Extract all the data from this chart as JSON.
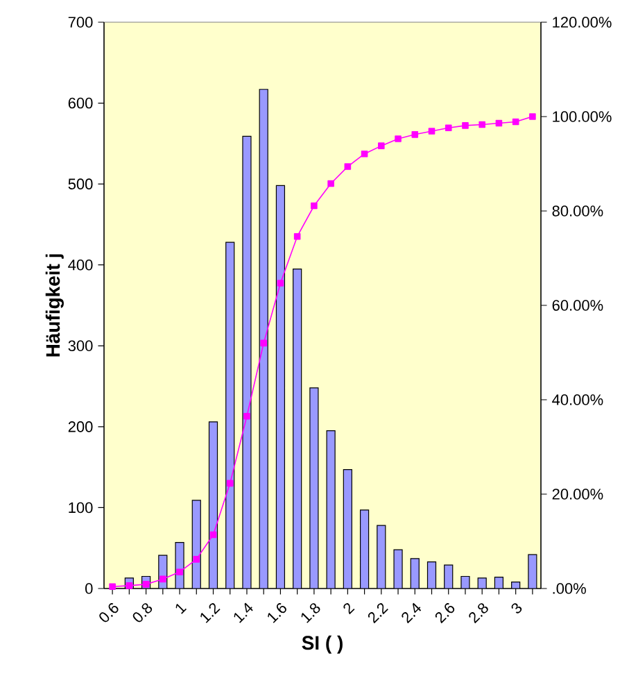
{
  "chart_data": {
    "type": "bar",
    "xlabel": "SI ( )",
    "ylabel": "Häufigkeit j",
    "categories": [
      "0.6",
      null,
      "0.8",
      null,
      "1",
      null,
      "1.2",
      null,
      "1.4",
      null,
      "1.6",
      null,
      "1.8",
      null,
      "2",
      null,
      "2.2",
      null,
      "2.4",
      null,
      "2.6",
      null,
      "2.8",
      null,
      "3",
      null
    ],
    "series": [
      {
        "color": "#9999ff",
        "values": [
          null,
          13,
          15,
          41,
          57,
          109,
          206,
          428,
          559,
          617,
          498,
          395,
          248,
          195,
          147,
          97,
          78,
          48,
          37,
          33,
          29,
          15,
          13,
          14,
          8,
          42
        ]
      },
      {
        "type": "line",
        "axis": "y2",
        "color": "#ff00ff",
        "marker": "square",
        "line_style": "solid",
        "values": [
          0.4,
          0.6,
          0.9,
          2.0,
          3.5,
          6.2,
          11.4,
          22.3,
          36.5,
          52.0,
          64.7,
          74.6,
          81.1,
          85.8,
          89.4,
          92.1,
          93.8,
          95.3,
          96.2,
          96.9,
          97.6,
          98.1,
          98.3,
          98.6,
          98.9,
          100
        ]
      }
    ],
    "ylim": [
      0,
      700
    ],
    "yticks": [
      0,
      100,
      200,
      300,
      400,
      500,
      600,
      700
    ],
    "y2lim": [
      0,
      120
    ],
    "y2ticks": [
      {
        "value": 0,
        "label": ".00%"
      },
      {
        "value": 20,
        "label": "20.00%"
      },
      {
        "value": 40,
        "label": "40.00%"
      },
      {
        "value": 60,
        "label": "60.00%"
      },
      {
        "value": 80,
        "label": "80.00%"
      },
      {
        "value": 100,
        "label": "100.00%"
      },
      {
        "value": 120,
        "label": "120.00%"
      }
    ]
  }
}
